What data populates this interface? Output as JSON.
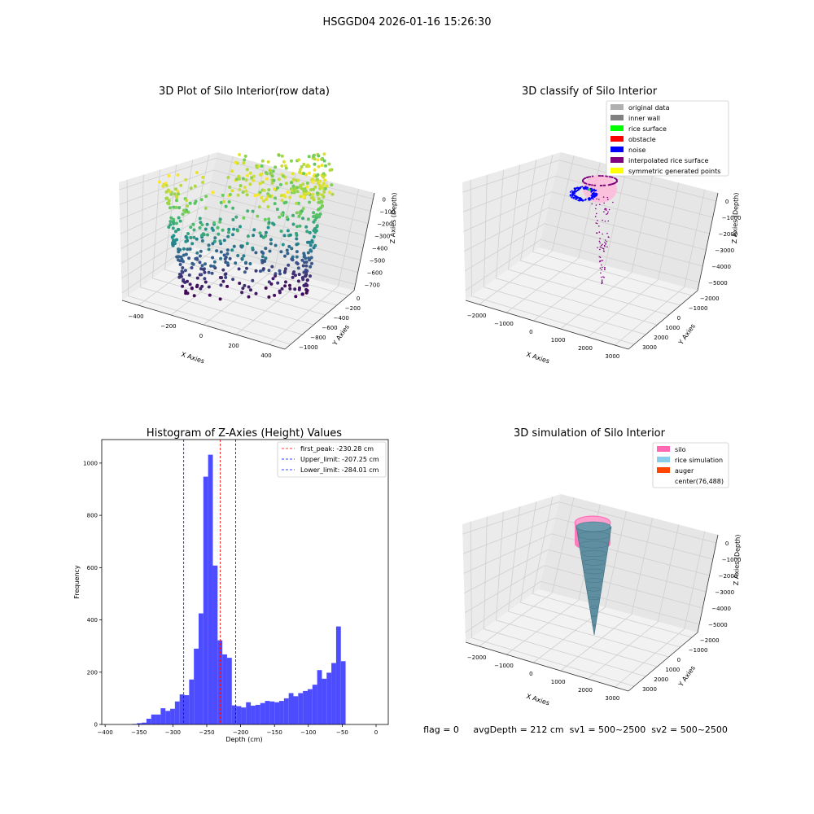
{
  "figure": {
    "suptitle": "HSGGD04 2026-01-16 15:26:30",
    "footer": "flag = 0     avgDepth = 212 cm  sv1 = 500~2500  sv2 = 500~2500"
  },
  "colors": {
    "histogram_bar": "#4d4dff",
    "first_peak_line": "#ff0000",
    "limit_line": "#0000ff",
    "pane_light": "#f2f2f2",
    "pane_mid": "#ebebeb",
    "pane_dark": "#e6e6e6",
    "gridline": "#cfcfcf",
    "silo": "#ff69b4",
    "rice_simulation": "#5f8ea0",
    "noise": "#0000ff",
    "interpolated": "#800080"
  },
  "chart_data": [
    {
      "id": "raw3d",
      "type": "scatter",
      "title": "3D Plot of Silo Interior(row data)",
      "xlabel": "X Axies",
      "ylabel": "Y Axies",
      "zlabel": "Z Axies (Depth)",
      "xticks": [
        "−400",
        "−200",
        "0",
        "200",
        "400"
      ],
      "yticks": [
        "0",
        "−200",
        "−400",
        "−600",
        "−800",
        "−1000"
      ],
      "zticks": [
        "0",
        "−100",
        "−200",
        "−300",
        "−400",
        "−500",
        "−600",
        "−700"
      ],
      "xlim": [
        -480,
        480
      ],
      "ylim": [
        -1000,
        80
      ],
      "zlim": [
        -730,
        20
      ],
      "colormap": "viridis (by depth)"
    },
    {
      "id": "classify3d",
      "type": "scatter",
      "title": "3D classify of Silo Interior",
      "xlabel": "X Axies",
      "ylabel": "Y Axies",
      "zlabel": "Z Axies (Depth)",
      "xticks": [
        "−2000",
        "−1000",
        "0",
        "1000",
        "2000",
        "3000"
      ],
      "yticks": [
        "−2000",
        "−1000",
        "0",
        "1000",
        "2000",
        "3000"
      ],
      "zticks": [
        "0",
        "−1000",
        "−2000",
        "−3000",
        "−4000",
        "−5000"
      ],
      "legend": [
        {
          "label": "original data",
          "color": "#b0b0b0"
        },
        {
          "label": "inner wall",
          "color": "#808080"
        },
        {
          "label": "rice surface",
          "color": "#00ff00"
        },
        {
          "label": "obstacle",
          "color": "#ff0000"
        },
        {
          "label": "noise",
          "color": "#0000ff"
        },
        {
          "label": "interpolated rice surface",
          "color": "#800080"
        },
        {
          "label": "symmetric generated points",
          "color": "#ffff00"
        }
      ],
      "legend_position": "upper right"
    },
    {
      "id": "histogram",
      "type": "bar",
      "title": "Histogram of Z-Axies (Height) Values",
      "xlabel": "Depth (cm)",
      "ylabel": "Frequency",
      "xlim": [
        -405,
        18
      ],
      "ylim": [
        0,
        1090
      ],
      "xticks": [
        -400,
        -350,
        -300,
        -250,
        -200,
        -150,
        -100,
        -50,
        0
      ],
      "xtick_labels": [
        "−400",
        "−350",
        "−300",
        "−250",
        "−200",
        "−150",
        "−100",
        "−50",
        "0"
      ],
      "yticks": [
        0,
        200,
        400,
        600,
        800,
        1000
      ],
      "yticks_labels": [
        "0",
        "200",
        "400",
        "600",
        "800",
        "1000"
      ],
      "bin_start": -360,
      "bin_width": 7,
      "values": [
        2,
        5,
        7,
        22,
        38,
        38,
        62,
        52,
        60,
        88,
        115,
        112,
        172,
        290,
        425,
        948,
        1032,
        608,
        322,
        268,
        255,
        73,
        70,
        65,
        85,
        72,
        75,
        82,
        90,
        88,
        85,
        90,
        100,
        120,
        108,
        120,
        128,
        135,
        152,
        208,
        175,
        198,
        235,
        375,
        242
      ],
      "lines": [
        {
          "name": "first_peak: -230.28 cm",
          "x": -230.28,
          "color": "#ff0000"
        },
        {
          "name": "Upper_limit: -207.25 cm",
          "x": -207.25,
          "color": "#0000ff"
        },
        {
          "name": "Lower_limit: -284.01 cm",
          "x": -284.01,
          "color": "#0000ff"
        }
      ],
      "legend_position": "upper right"
    },
    {
      "id": "sim3d",
      "type": "surface",
      "title": "3D simulation of Silo Interior",
      "xlabel": "X Axies",
      "ylabel": "Y Axies",
      "zlabel": "Z Axies (Depth)",
      "xticks": [
        "−2000",
        "−1000",
        "0",
        "1000",
        "2000",
        "3000"
      ],
      "yticks": [
        "−2000",
        "−1000",
        "0",
        "1000",
        "2000",
        "3000"
      ],
      "zticks": [
        "0",
        "−1000",
        "−2000",
        "−3000",
        "−4000",
        "−5000"
      ],
      "legend": [
        {
          "label": "silo",
          "color": "#ff69b4"
        },
        {
          "label": "rice simulation",
          "color": "#87ceeb"
        },
        {
          "label": "auger",
          "color": "#ff4500"
        },
        {
          "label": "center(76,488)",
          "color": ""
        }
      ],
      "legend_position": "upper right"
    }
  ]
}
